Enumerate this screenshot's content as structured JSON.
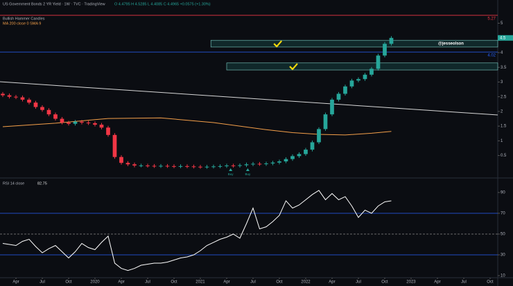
{
  "header": {
    "symbol": "US Government Bonds 2 YR Yield · 1W · TVC · TradingView",
    "ohlc": "O 4.4795 H 4.5285 L 4.4085 C 4.4965 +0.0575 (+1.30%)",
    "indicator1": "Bullish Hammer Candles",
    "indicator2": "MA 200 close 0 SMA 9"
  },
  "chart_data": [
    {
      "type": "candlestick",
      "xlim": [
        -0.42,
        75.16
      ],
      "ylim": [
        -0.24,
        5.79
      ],
      "xticks": [
        {
          "value": 2,
          "label": "Apr"
        },
        {
          "value": 6,
          "label": "Jul"
        },
        {
          "value": 10,
          "label": "Oct"
        },
        {
          "value": 14,
          "label": "2020"
        },
        {
          "value": 18,
          "label": "Apr"
        },
        {
          "value": 22,
          "label": "Jul"
        },
        {
          "value": 26,
          "label": "Oct"
        },
        {
          "value": 30,
          "label": "2021"
        },
        {
          "value": 34,
          "label": "Apr"
        },
        {
          "value": 38,
          "label": "Jul"
        },
        {
          "value": 42,
          "label": "Oct"
        },
        {
          "value": 46,
          "label": "2022"
        },
        {
          "value": 50,
          "label": "Apr"
        },
        {
          "value": 54,
          "label": "Jul"
        },
        {
          "value": 58,
          "label": "Oct"
        },
        {
          "value": 62,
          "label": "2023"
        },
        {
          "value": 66,
          "label": "Apr"
        },
        {
          "value": 70,
          "label": "Jul"
        },
        {
          "value": 74,
          "label": "Oct"
        }
      ],
      "yticks": [
        0.5,
        1,
        1.5,
        2,
        2.5,
        3,
        3.5,
        4,
        4.5,
        5
      ],
      "up_color": "#26a69a",
      "down_color": "#f23645",
      "open": [
        2.6,
        2.55,
        2.5,
        2.48,
        2.4,
        2.3,
        2.15,
        2.05,
        1.9,
        1.75,
        1.62,
        1.58,
        1.65,
        1.62,
        1.6,
        1.55,
        1.45,
        1.2,
        0.45,
        0.25,
        0.2,
        0.16,
        0.16,
        0.15,
        0.14,
        0.15,
        0.14,
        0.13,
        0.14,
        0.13,
        0.12,
        0.11,
        0.12,
        0.13,
        0.14,
        0.16,
        0.15,
        0.17,
        0.2,
        0.22,
        0.21,
        0.23,
        0.26,
        0.3,
        0.38,
        0.48,
        0.55,
        0.7,
        0.95,
        1.4,
        1.9,
        2.4,
        2.6,
        2.85,
        3.05,
        3.1,
        3.25,
        3.45,
        3.9,
        4.3
      ],
      "high": [
        2.66,
        2.61,
        2.56,
        2.54,
        2.46,
        2.36,
        2.21,
        2.11,
        1.96,
        1.81,
        1.68,
        1.71,
        1.71,
        1.68,
        1.66,
        1.61,
        1.51,
        1.26,
        0.51,
        0.31,
        0.26,
        0.22,
        0.22,
        0.21,
        0.21,
        0.21,
        0.2,
        0.2,
        0.2,
        0.19,
        0.18,
        0.18,
        0.19,
        0.2,
        0.22,
        0.22,
        0.23,
        0.26,
        0.28,
        0.28,
        0.29,
        0.32,
        0.36,
        0.44,
        0.54,
        0.61,
        0.76,
        1.01,
        1.46,
        1.96,
        2.46,
        2.66,
        2.91,
        3.11,
        3.16,
        3.31,
        3.51,
        3.96,
        4.36,
        4.56
      ],
      "low": [
        2.49,
        2.44,
        2.42,
        2.34,
        2.24,
        2.09,
        1.99,
        1.84,
        1.69,
        1.56,
        1.52,
        1.52,
        1.56,
        1.54,
        1.49,
        1.39,
        1.14,
        0.39,
        0.19,
        0.14,
        0.1,
        0.1,
        0.09,
        0.08,
        0.08,
        0.08,
        0.07,
        0.07,
        0.07,
        0.06,
        0.05,
        0.05,
        0.06,
        0.07,
        0.08,
        0.09,
        0.09,
        0.11,
        0.14,
        0.15,
        0.15,
        0.17,
        0.2,
        0.24,
        0.32,
        0.42,
        0.49,
        0.64,
        0.89,
        1.34,
        1.84,
        2.34,
        2.54,
        2.79,
        2.99,
        3.04,
        3.19,
        3.39,
        3.84,
        4.24
      ],
      "close": [
        2.55,
        2.5,
        2.48,
        2.4,
        2.3,
        2.15,
        2.05,
        1.9,
        1.75,
        1.62,
        1.58,
        1.65,
        1.62,
        1.6,
        1.55,
        1.45,
        1.2,
        0.45,
        0.25,
        0.2,
        0.16,
        0.16,
        0.15,
        0.14,
        0.15,
        0.14,
        0.13,
        0.14,
        0.13,
        0.12,
        0.11,
        0.12,
        0.13,
        0.14,
        0.16,
        0.15,
        0.17,
        0.2,
        0.22,
        0.21,
        0.23,
        0.26,
        0.3,
        0.38,
        0.48,
        0.55,
        0.7,
        0.95,
        1.4,
        1.9,
        2.4,
        2.6,
        2.85,
        3.05,
        3.1,
        3.25,
        3.45,
        3.9,
        4.3,
        4.5
      ],
      "lines": [
        {
          "color": "#f5a04a",
          "x": [
            0,
            8,
            16,
            24,
            32,
            40,
            44,
            48,
            52,
            56,
            59
          ],
          "values": [
            1.48,
            1.6,
            1.76,
            1.78,
            1.62,
            1.38,
            1.28,
            1.22,
            1.2,
            1.26,
            1.32
          ]
        },
        {
          "color": "#d8d8d8",
          "x": [
            -0.42,
            75.16
          ],
          "values": [
            3.01,
            1.88
          ]
        }
      ],
      "hlines": [
        {
          "value": 5.27,
          "label": "5.27",
          "color": "#f23645"
        },
        {
          "value": 4.02,
          "label": "4.02",
          "color": "#2962ff"
        }
      ],
      "zones": [
        {
          "x0": 31.6,
          "top": 4.42,
          "bottom": 4.19,
          "label": "@jesseolson"
        },
        {
          "x0": 34,
          "top": 3.65,
          "bottom": 3.41
        }
      ],
      "signals": [
        {
          "x": 34.6,
          "label": "Buy"
        },
        {
          "x": 37.2,
          "label": "Buy"
        }
      ]
    },
    {
      "type": "line",
      "title": "RSI 14 close",
      "value_label": "82.75",
      "ylim": [
        8.7,
        103.3
      ],
      "yticks": [
        10,
        30,
        50,
        70,
        90
      ],
      "color": "#ffffff",
      "levels": [
        {
          "value": 70,
          "color": "#2962ff"
        },
        {
          "value": 50,
          "color": "#888888"
        },
        {
          "value": 30,
          "color": "#2962ff"
        }
      ],
      "values": [
        41,
        40,
        39,
        43,
        45,
        38,
        32,
        36,
        39,
        33,
        27,
        33,
        41,
        37,
        35,
        42,
        48,
        22,
        17,
        15,
        17,
        20,
        21,
        22,
        22,
        23,
        25,
        27,
        28,
        30,
        34,
        39,
        42,
        45,
        47,
        50,
        46,
        60,
        75,
        55,
        57,
        62,
        68,
        82,
        75,
        78,
        83,
        88,
        92,
        83,
        89,
        83,
        86,
        77,
        66,
        73,
        70,
        77,
        81,
        82
      ]
    }
  ]
}
